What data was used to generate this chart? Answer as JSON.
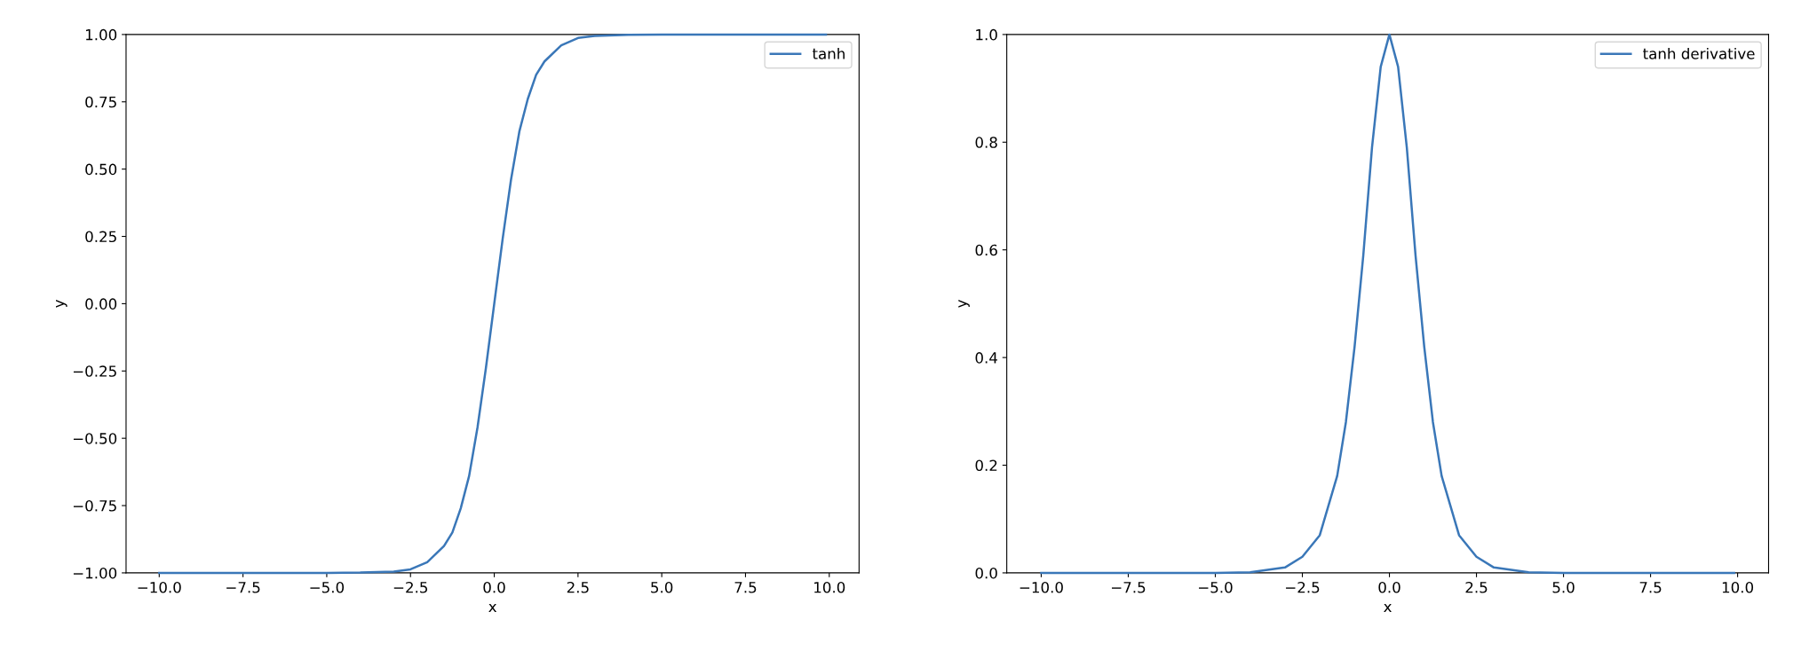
{
  "chart_data": [
    {
      "type": "line",
      "xlabel": "x",
      "ylabel": "y",
      "legend": "top right",
      "grid": false,
      "xlim": [
        -10.99,
        10.89
      ],
      "ylim": [
        -1,
        1
      ],
      "xticks": [
        {
          "value": -10,
          "label": "−10.0"
        },
        {
          "value": -7.5,
          "label": "−7.5"
        },
        {
          "value": -5,
          "label": "−5.0"
        },
        {
          "value": -2.5,
          "label": "−2.5"
        },
        {
          "value": 0,
          "label": "0.0"
        },
        {
          "value": 2.5,
          "label": "2.5"
        },
        {
          "value": 5,
          "label": "5.0"
        },
        {
          "value": 7.5,
          "label": "7.5"
        },
        {
          "value": 10,
          "label": "10.0"
        }
      ],
      "yticks": [
        {
          "value": -1,
          "label": "−1.00"
        },
        {
          "value": -0.75,
          "label": "−0.75"
        },
        {
          "value": -0.5,
          "label": "−0.50"
        },
        {
          "value": -0.25,
          "label": "−0.25"
        },
        {
          "value": 0,
          "label": "0.00"
        },
        {
          "value": 0.25,
          "label": "0.25"
        },
        {
          "value": 0.5,
          "label": "0.50"
        },
        {
          "value": 0.75,
          "label": "0.75"
        },
        {
          "value": 1,
          "label": "1.00"
        }
      ],
      "x": [
        -10,
        -5,
        -4,
        -3,
        -2.5,
        -2,
        -1.5,
        -1.25,
        -1,
        -0.75,
        -0.5,
        -0.25,
        0,
        0.25,
        0.5,
        0.75,
        1,
        1.25,
        1.5,
        2,
        2.5,
        3,
        4,
        5,
        9.9
      ],
      "series": [
        {
          "name": "tanh",
          "color": "#3a77b8",
          "values": [
            -1,
            -1,
            -0.999,
            -0.995,
            -0.987,
            -0.96,
            -0.9,
            -0.85,
            -0.76,
            -0.64,
            -0.46,
            -0.24,
            0,
            0.24,
            0.46,
            0.64,
            0.76,
            0.85,
            0.9,
            0.96,
            0.987,
            0.995,
            0.999,
            1,
            1
          ]
        }
      ]
    },
    {
      "type": "line",
      "xlabel": "x",
      "ylabel": "y",
      "legend": "top right",
      "grid": false,
      "xlim": [
        -10.99,
        10.89
      ],
      "ylim": [
        0,
        1
      ],
      "xticks": [
        {
          "value": -10,
          "label": "−10.0"
        },
        {
          "value": -7.5,
          "label": "−7.5"
        },
        {
          "value": -5,
          "label": "−5.0"
        },
        {
          "value": -2.5,
          "label": "−2.5"
        },
        {
          "value": 0,
          "label": "0.0"
        },
        {
          "value": 2.5,
          "label": "2.5"
        },
        {
          "value": 5,
          "label": "5.0"
        },
        {
          "value": 7.5,
          "label": "7.5"
        },
        {
          "value": 10,
          "label": "10.0"
        }
      ],
      "yticks": [
        {
          "value": 0,
          "label": "0.0"
        },
        {
          "value": 0.2,
          "label": "0.2"
        },
        {
          "value": 0.4,
          "label": "0.4"
        },
        {
          "value": 0.6,
          "label": "0.6"
        },
        {
          "value": 0.8,
          "label": "0.8"
        },
        {
          "value": 1,
          "label": "1.0"
        }
      ],
      "x": [
        -10,
        -5,
        -4,
        -3,
        -2.5,
        -2,
        -1.5,
        -1.25,
        -1,
        -0.75,
        -0.5,
        -0.25,
        0,
        0.25,
        0.5,
        0.75,
        1,
        1.25,
        1.5,
        2,
        2.5,
        3,
        4,
        5,
        9.9
      ],
      "series": [
        {
          "name": "tanh derivative",
          "color": "#3a77b8",
          "values": [
            0,
            0,
            0.001,
            0.01,
            0.03,
            0.07,
            0.18,
            0.28,
            0.42,
            0.59,
            0.79,
            0.94,
            1,
            0.94,
            0.79,
            0.59,
            0.42,
            0.28,
            0.18,
            0.07,
            0.03,
            0.01,
            0.001,
            0,
            0
          ]
        }
      ]
    }
  ]
}
